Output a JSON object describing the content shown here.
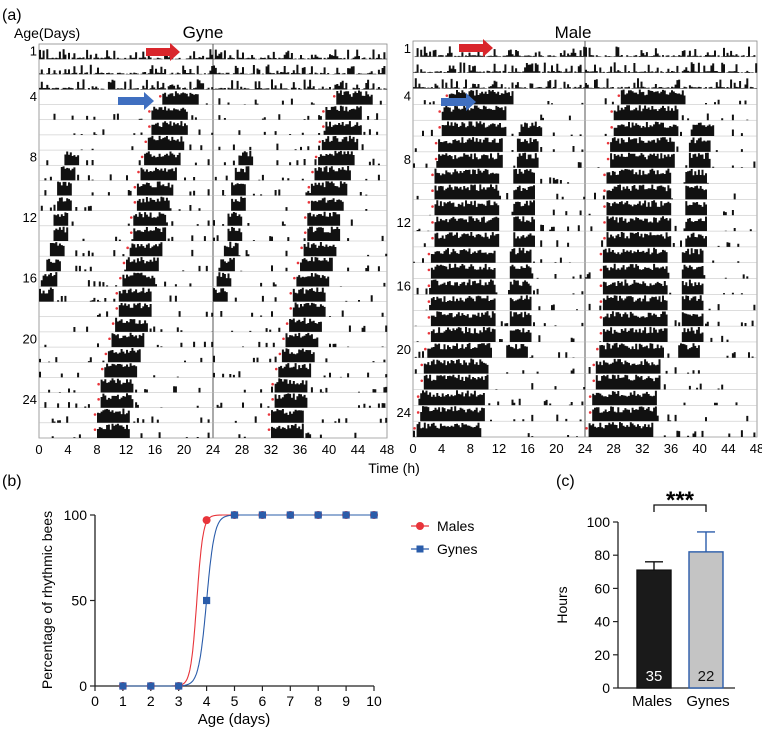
{
  "panels": {
    "a": "(a)",
    "b": "(b)",
    "c": "(c)"
  },
  "colors": {
    "male": "#e8343a",
    "gyne": "#2a5caa",
    "bar_male": "#1a1a1a",
    "bar_gyne": "#c4c4c4",
    "arrow_red": "#d9252b",
    "arrow_blue": "#3f6fc0",
    "onset_dot": "#e8343a"
  },
  "actogram": {
    "age_label": "Age(Days)",
    "xlabel": "Time (h)",
    "xticks": [
      "0",
      "4",
      "8",
      "12",
      "16",
      "20",
      "24",
      "28",
      "32",
      "36",
      "40",
      "44",
      "48"
    ],
    "gyne": {
      "title": "Gyne",
      "rows": 26,
      "row_labels": [
        {
          "row": 1,
          "label": "1"
        },
        {
          "row": 4,
          "label": "4"
        },
        {
          "row": 8,
          "label": "8"
        },
        {
          "row": 12,
          "label": "12"
        },
        {
          "row": 16,
          "label": "16"
        },
        {
          "row": 20,
          "label": "20"
        },
        {
          "row": 24,
          "label": "24"
        }
      ],
      "onsets_h": [
        null,
        null,
        null,
        17,
        15.5,
        15.5,
        15,
        14.5,
        14,
        13.5,
        13.5,
        13,
        13,
        12.5,
        12,
        11.5,
        11,
        11,
        10.5,
        10,
        9.5,
        9,
        8.5,
        8.5,
        8,
        8
      ]
    },
    "male": {
      "title": "Male",
      "rows": 25,
      "row_labels": [
        {
          "row": 1,
          "label": "1"
        },
        {
          "row": 4,
          "label": "4"
        },
        {
          "row": 8,
          "label": "8"
        },
        {
          "row": 12,
          "label": "12"
        },
        {
          "row": 16,
          "label": "16"
        },
        {
          "row": 20,
          "label": "20"
        },
        {
          "row": 24,
          "label": "24"
        }
      ],
      "onsets_h": [
        null,
        null,
        null,
        5,
        4,
        4,
        3.5,
        3.5,
        3,
        3,
        3,
        3,
        3,
        2.5,
        2.5,
        2.5,
        2.5,
        2.5,
        2.5,
        2,
        1.5,
        1.5,
        1,
        1,
        0.5
      ]
    }
  },
  "chart_data": [
    {
      "type": "line",
      "title": "",
      "xlabel": "Age (days)",
      "ylabel": "Percentage of rhythmic bees",
      "xlim": [
        0,
        10
      ],
      "ylim": [
        0,
        100
      ],
      "xticks": [
        "0",
        "1",
        "2",
        "3",
        "4",
        "5",
        "6",
        "7",
        "8",
        "9",
        "10"
      ],
      "yticks": [
        "0",
        "50",
        "100"
      ],
      "legend_position": "right",
      "series": [
        {
          "name": "Males",
          "marker": "circle",
          "x": [
            1,
            2,
            3,
            4,
            5,
            6,
            7,
            8,
            9,
            10
          ],
          "y": [
            0,
            0,
            0,
            97,
            100,
            100,
            100,
            100,
            100,
            100
          ],
          "fit_midpoint": 3.65,
          "fit_slope": 9
        },
        {
          "name": "Gynes",
          "marker": "square",
          "x": [
            1,
            2,
            3,
            4,
            5,
            6,
            7,
            8,
            9,
            10
          ],
          "y": [
            0,
            0,
            0,
            50,
            100,
            100,
            100,
            100,
            100,
            100
          ],
          "fit_midpoint": 4.0,
          "fit_slope": 7
        }
      ]
    },
    {
      "type": "bar",
      "title": "",
      "xlabel": "",
      "ylabel": "Hours",
      "ylim": [
        0,
        100
      ],
      "yticks": [
        "0",
        "20",
        "40",
        "60",
        "80",
        "100"
      ],
      "categories": [
        "Males",
        "Gynes"
      ],
      "values": [
        71,
        82
      ],
      "errors": [
        5,
        12
      ],
      "n_labels": [
        "35",
        "22"
      ],
      "significance": "***"
    }
  ]
}
